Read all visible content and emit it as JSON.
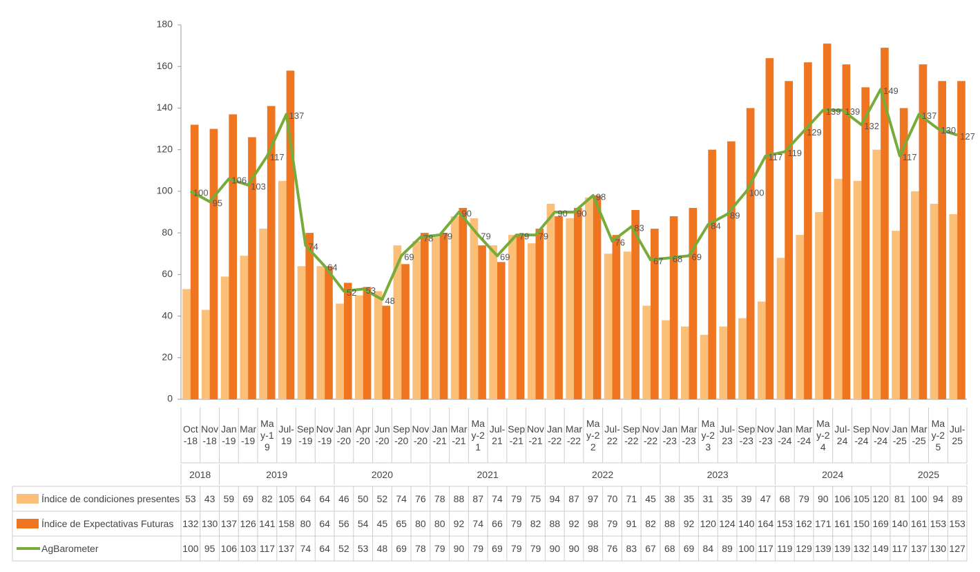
{
  "chart_data": {
    "type": "bar",
    "categories": [
      "Oct-18",
      "Nov-18",
      "Jan-19",
      "Mar-19",
      "May-19",
      "Jul-19",
      "Sep-19",
      "Nov-19",
      "Jan-20",
      "Apr-20",
      "Jun-20",
      "Sep-20",
      "Nov-20",
      "Jan-21",
      "Mar-21",
      "May-21",
      "Jul-21",
      "Sep-21",
      "Nov-21",
      "Jan-22",
      "Mar-22",
      "May-22",
      "Jul-22",
      "Sep-22",
      "Nov-22",
      "Jan-23",
      "Mar-23",
      "May-23",
      "Jul-23",
      "Sep-23",
      "Nov-23",
      "Jan-24",
      "Mar-24",
      "May-24",
      "Jul-24",
      "Sep-24",
      "Nov-24",
      "Jan-25",
      "Mar-25",
      "May-25",
      "Jul-25"
    ],
    "x_groups": [
      {
        "label": "2018",
        "span": 2
      },
      {
        "label": "2019",
        "span": 6
      },
      {
        "label": "2020",
        "span": 5
      },
      {
        "label": "2021",
        "span": 6
      },
      {
        "label": "2022",
        "span": 6
      },
      {
        "label": "2023",
        "span": 6
      },
      {
        "label": "2024",
        "span": 6
      },
      {
        "label": "2025",
        "span": 4
      }
    ],
    "series": [
      {
        "name": "Índice de condiciones presentes",
        "color": "#fbbf78",
        "values": [
          53,
          43,
          59,
          69,
          82,
          105,
          64,
          64,
          46,
          50,
          52,
          74,
          76,
          78,
          88,
          87,
          74,
          79,
          75,
          94,
          87,
          97,
          70,
          71,
          45,
          38,
          35,
          31,
          35,
          39,
          47,
          68,
          79,
          90,
          106,
          105,
          120,
          81,
          100,
          94,
          89
        ]
      },
      {
        "name": "Índice de Expectativas Futuras",
        "color": "#f07520",
        "values": [
          132,
          130,
          137,
          126,
          141,
          158,
          80,
          64,
          56,
          54,
          45,
          65,
          80,
          80,
          92,
          74,
          66,
          79,
          82,
          88,
          92,
          98,
          79,
          91,
          82,
          88,
          92,
          120,
          124,
          140,
          164,
          153,
          162,
          171,
          161,
          150,
          169,
          140,
          161,
          153,
          153
        ]
      },
      {
        "name": "AgBarometer",
        "type": "line",
        "color": "#77ab3a",
        "values": [
          100,
          95,
          106,
          103,
          117,
          137,
          74,
          64,
          52,
          53,
          48,
          69,
          78,
          79,
          90,
          79,
          69,
          79,
          79,
          90,
          90,
          98,
          76,
          83,
          67,
          68,
          69,
          84,
          89,
          100,
          117,
          119,
          129,
          139,
          139,
          132,
          149,
          117,
          137,
          130,
          127
        ]
      }
    ],
    "ylim": [
      0,
      180
    ],
    "yticks": [
      0,
      20,
      40,
      60,
      80,
      100,
      120,
      140,
      160,
      180
    ],
    "grid": false
  }
}
